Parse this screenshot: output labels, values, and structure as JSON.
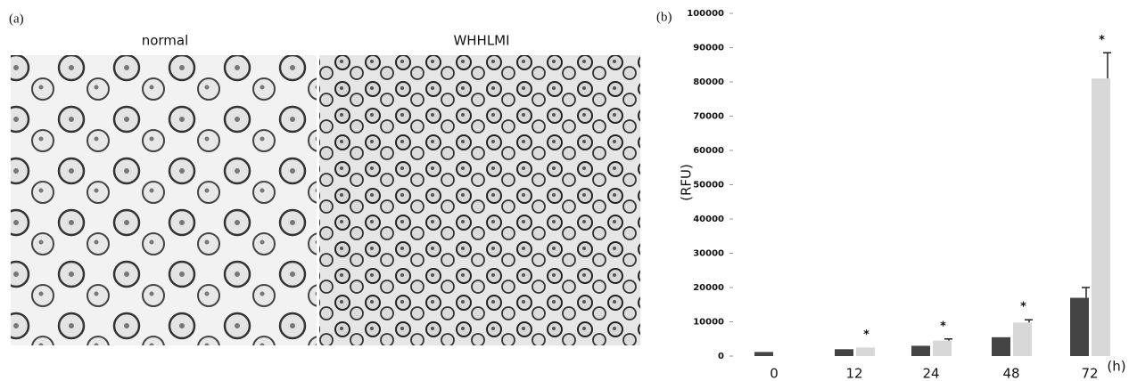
{
  "figure": {
    "panel_a": "(a)",
    "image_labels": [
      "normal",
      "WHHLMI"
    ],
    "panel_b": "(b)"
  },
  "chart_data": {
    "type": "bar",
    "categories": [
      "0",
      "12",
      "24",
      "48",
      "72"
    ],
    "x_label": "(h)",
    "y_label": "(RFU)",
    "series": [
      {
        "color": "#444444",
        "values": [
          1200,
          2000,
          3000,
          5500,
          17000
        ],
        "errors": [
          0,
          0,
          0,
          0,
          3000
        ]
      },
      {
        "color": "#d8d8d8",
        "values": [
          null,
          2500,
          4500,
          9800,
          81000
        ],
        "errors": [
          null,
          0,
          500,
          800,
          7500
        ],
        "markers": [
          null,
          "*",
          "*",
          "*",
          "*"
        ]
      }
    ],
    "ylim": [
      0,
      100000
    ],
    "yticks": [
      0,
      10000,
      20000,
      30000,
      40000,
      50000,
      60000,
      70000,
      80000,
      90000,
      100000
    ],
    "grid": false
  }
}
